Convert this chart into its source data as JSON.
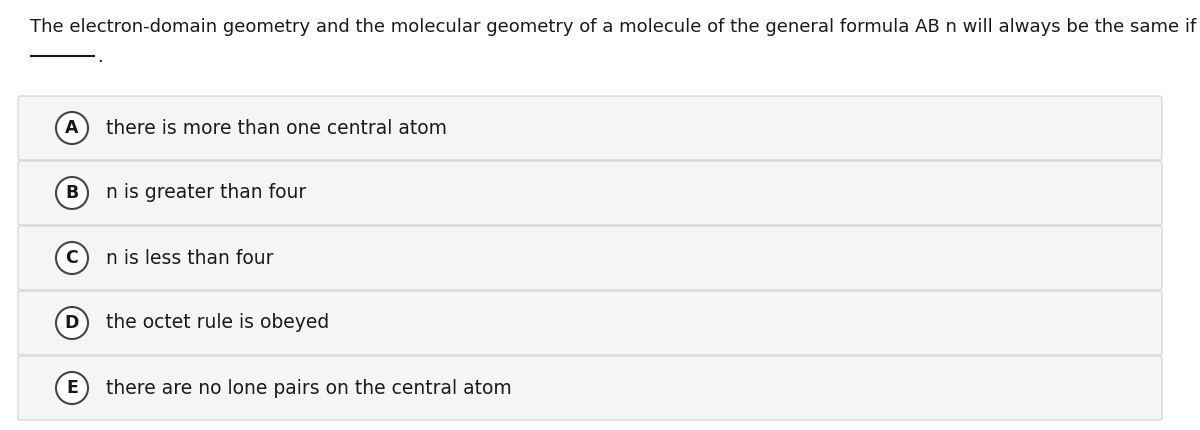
{
  "title_line1": "The electron-domain geometry and the molecular geometry of a molecule of the general formula AB n will always be the same if",
  "underline_text": "—————.",
  "options": [
    {
      "label": "A",
      "text": "there is more than one central atom"
    },
    {
      "label": "B",
      "text": "n is greater than four"
    },
    {
      "label": "C",
      "text": "n is less than four"
    },
    {
      "label": "D",
      "text": "the octet rule is obeyed"
    },
    {
      "label": "E",
      "text": "there are no lone pairs on the central atom"
    }
  ],
  "bg_color": "#ffffff",
  "option_bg_color": "#f5f5f5",
  "option_border_color": "#d0d0d0",
  "text_color": "#1a1a1a",
  "circle_edge_color": "#444444",
  "circle_face_color": "#ffffff",
  "title_fontsize": 13.0,
  "option_fontsize": 13.5,
  "label_fontsize": 12.5
}
